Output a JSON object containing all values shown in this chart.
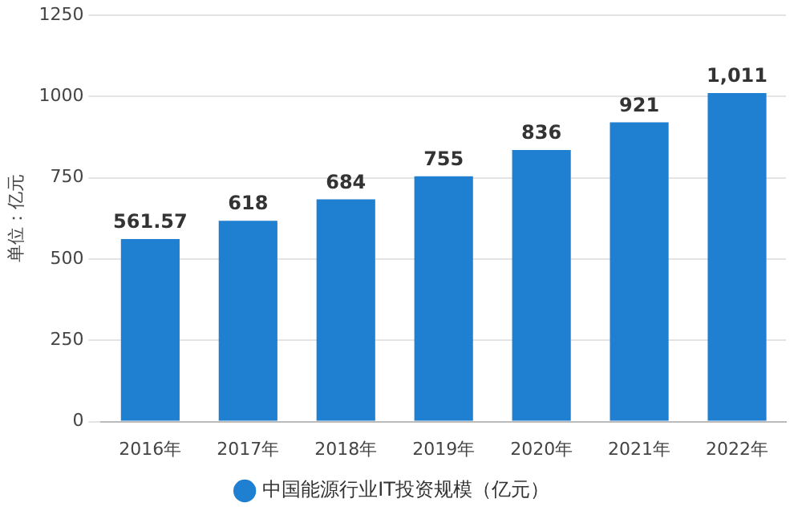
{
  "chart_data": {
    "type": "bar",
    "ylabel": "单位：亿元",
    "categories": [
      "2016年",
      "2017年",
      "2018年",
      "2019年",
      "2020年",
      "2021年",
      "2022年"
    ],
    "series": [
      {
        "name": "中国能源行业IT投资规模（亿元）",
        "color": "#1f7fd0",
        "values": [
          561.57,
          618,
          684,
          755,
          836,
          921,
          1011
        ],
        "value_labels": [
          "561.57",
          "618",
          "684",
          "755",
          "836",
          "921",
          "1,011"
        ]
      }
    ],
    "ylim": [
      0,
      1250
    ],
    "yticks": [
      0,
      250,
      500,
      750,
      1000,
      1250
    ],
    "grid": "y",
    "legend": "bottom"
  }
}
